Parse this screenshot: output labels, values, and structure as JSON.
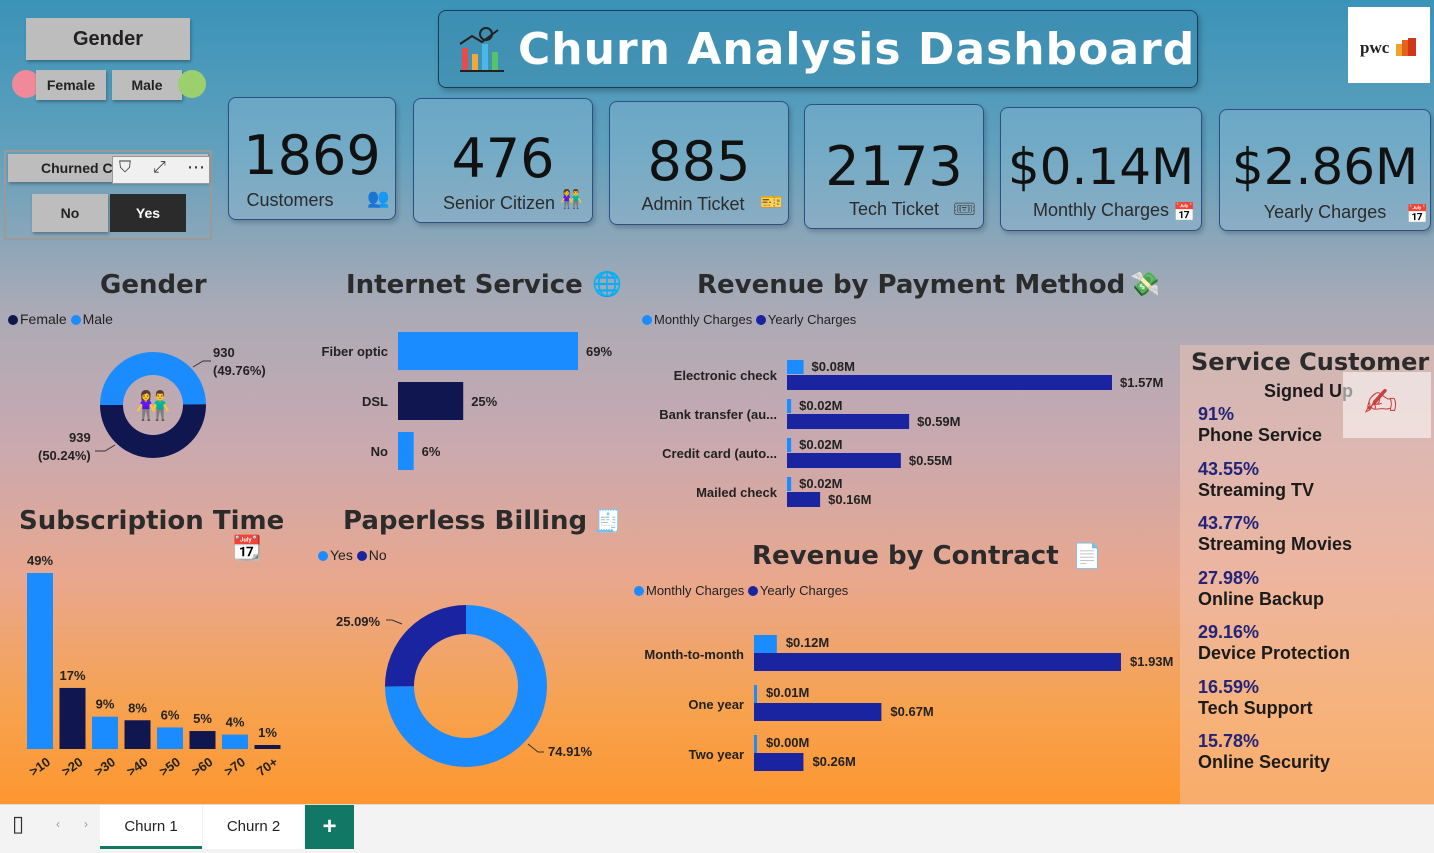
{
  "title": "Churn Analysis Dashboard",
  "logo": "pwc",
  "slicers": {
    "gender_title": "Gender",
    "female": "Female",
    "male": "Male",
    "churned_title": "Churned C",
    "no": "No",
    "yes": "Yes"
  },
  "kpis": [
    {
      "value": "1869",
      "label": "Customers",
      "icon": "people-icon"
    },
    {
      "value": "476",
      "label": "Senior Citizen",
      "icon": "elderly-couple-icon"
    },
    {
      "value": "885",
      "label": "Admin Ticket",
      "icon": "ticket-icon"
    },
    {
      "value": "2173",
      "label": "Tech Ticket",
      "icon": "ticket-icon"
    },
    {
      "value": "$0.14M",
      "label": "Monthly Charges",
      "icon": "calendar-icon"
    },
    {
      "value": "$2.86M",
      "label": "Yearly Charges",
      "icon": "calendar-icon"
    }
  ],
  "colors": {
    "light_blue": "#1a8cff",
    "navy": "#0f1650",
    "royal": "#1a23a0"
  },
  "sections": {
    "gender": "Gender",
    "internet": "Internet Service",
    "payment": "Revenue by Payment Method",
    "subscription": "Subscription Time",
    "paperless": "Paperless Billing",
    "contract": "Revenue by Contract",
    "service_title": "Service Customer",
    "service_subtitle": "Signed Up"
  },
  "chart_data": [
    {
      "id": "gender",
      "type": "pie",
      "legend": [
        "Female",
        "Male"
      ],
      "slices": [
        {
          "name": "Male",
          "value": 930,
          "label": "930",
          "pct_label": "(49.76%)"
        },
        {
          "name": "Female",
          "value": 939,
          "label": "939",
          "pct_label": "(50.24%)"
        }
      ]
    },
    {
      "id": "internet",
      "type": "bar",
      "categories": [
        "Fiber optic",
        "DSL",
        "No"
      ],
      "values": [
        69,
        25,
        6
      ],
      "labels": [
        "69%",
        "25%",
        "6%"
      ]
    },
    {
      "id": "payment",
      "type": "bar",
      "legend": [
        "Monthly Charges",
        "Yearly Charges"
      ],
      "categories": [
        "Electronic check",
        "Bank transfer (au...",
        "Credit card (auto...",
        "Mailed check"
      ],
      "series": [
        {
          "name": "Monthly Charges",
          "values": [
            0.08,
            0.02,
            0.02,
            0.02
          ],
          "labels": [
            "$0.08M",
            "$0.02M",
            "$0.02M",
            "$0.02M"
          ]
        },
        {
          "name": "Yearly Charges",
          "values": [
            1.57,
            0.59,
            0.55,
            0.16
          ],
          "labels": [
            "$1.57M",
            "$0.59M",
            "$0.55M",
            "$0.16M"
          ]
        }
      ]
    },
    {
      "id": "subscription",
      "type": "bar",
      "categories": [
        ">10",
        ">20",
        ">30",
        ">40",
        ">50",
        ">60",
        ">70",
        "70+"
      ],
      "values": [
        49,
        17,
        9,
        8,
        6,
        5,
        4,
        1
      ],
      "labels": [
        "49%",
        "17%",
        "9%",
        "8%",
        "6%",
        "5%",
        "4%",
        "1%"
      ]
    },
    {
      "id": "paperless",
      "type": "pie",
      "legend": [
        "Yes",
        "No"
      ],
      "slices": [
        {
          "name": "Yes",
          "value": 74.91,
          "label": "74.91%"
        },
        {
          "name": "No",
          "value": 25.09,
          "label": "25.09%"
        }
      ]
    },
    {
      "id": "contract",
      "type": "bar",
      "legend": [
        "Monthly Charges",
        "Yearly Charges"
      ],
      "categories": [
        "Month-to-month",
        "One year",
        "Two year"
      ],
      "series": [
        {
          "name": "Monthly Charges",
          "values": [
            0.12,
            0.01,
            0.0
          ],
          "labels": [
            "$0.12M",
            "$0.01M",
            "$0.00M"
          ]
        },
        {
          "name": "Yearly Charges",
          "values": [
            1.93,
            0.67,
            0.26
          ],
          "labels": [
            "$1.93M",
            "$0.67M",
            "$0.26M"
          ]
        }
      ]
    },
    {
      "id": "services",
      "type": "table",
      "rows": [
        {
          "pct": "91%",
          "name": "Phone Service"
        },
        {
          "pct": "43.55%",
          "name": "Streaming TV"
        },
        {
          "pct": "43.77%",
          "name": "Streaming Movies"
        },
        {
          "pct": "27.98%",
          "name": "Online Backup"
        },
        {
          "pct": "29.16%",
          "name": "Device Protection"
        },
        {
          "pct": "16.59%",
          "name": "Tech Support"
        },
        {
          "pct": "15.78%",
          "name": "Online Security"
        }
      ]
    }
  ],
  "tabs": [
    {
      "label": "Churn 1",
      "active": true
    },
    {
      "label": "Churn 2",
      "active": false
    }
  ],
  "add_tab": "+"
}
